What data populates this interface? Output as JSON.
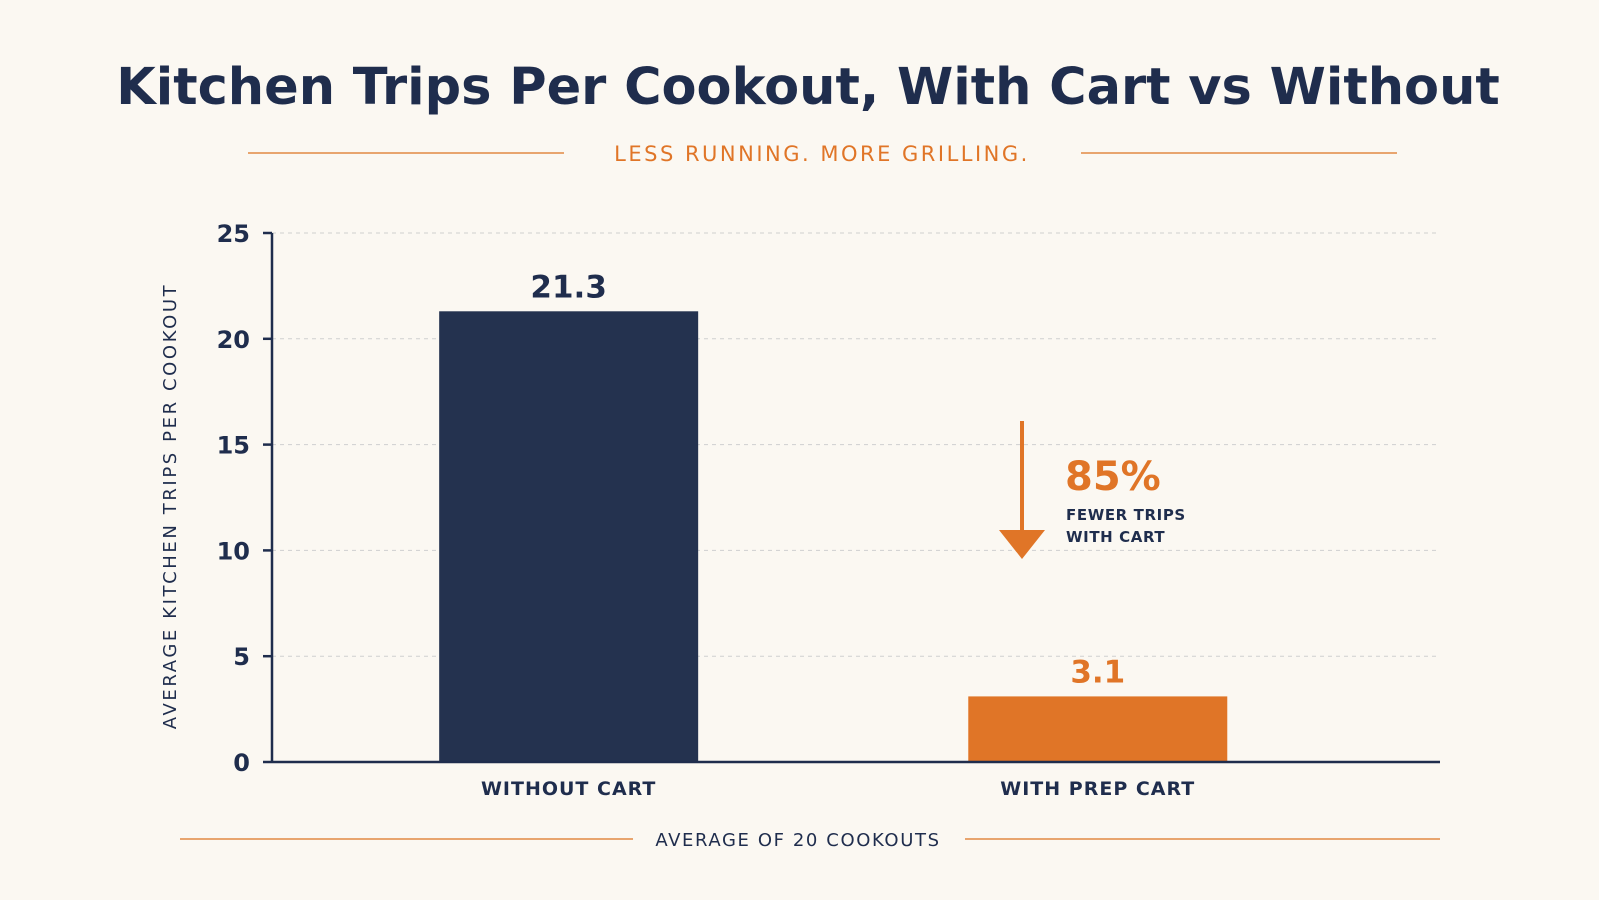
{
  "chart_data": {
    "type": "bar",
    "title": "Kitchen Trips Per Cookout, With Cart vs Without",
    "subtitle": "LESS RUNNING. MORE GRILLING.",
    "ylabel": "AVERAGE KITCHEN TRIPS PER COOKOUT",
    "xlabel": "",
    "ylim": [
      0,
      25
    ],
    "yticks": [
      "0",
      "5",
      "10",
      "15",
      "20",
      "25"
    ],
    "grid": true,
    "categories": [
      "WITHOUT CART",
      "WITH PREP CART"
    ],
    "values": [
      21.3,
      3.1
    ],
    "value_labels": [
      "21.3",
      "3.1"
    ],
    "footnote": "AVERAGE OF 20 COOKOUTS",
    "annotation": {
      "percent": "85%",
      "line1": "FEWER TRIPS",
      "line2": "WITH CART"
    }
  },
  "colors": {
    "navy": "#24324f",
    "orange": "#e07527",
    "text": "#1f2d4d",
    "rule": "#e8a56f",
    "grid": "#cfcfcf",
    "background": "#fbf8f2"
  },
  "icons": [
    "down-arrow-icon"
  ]
}
